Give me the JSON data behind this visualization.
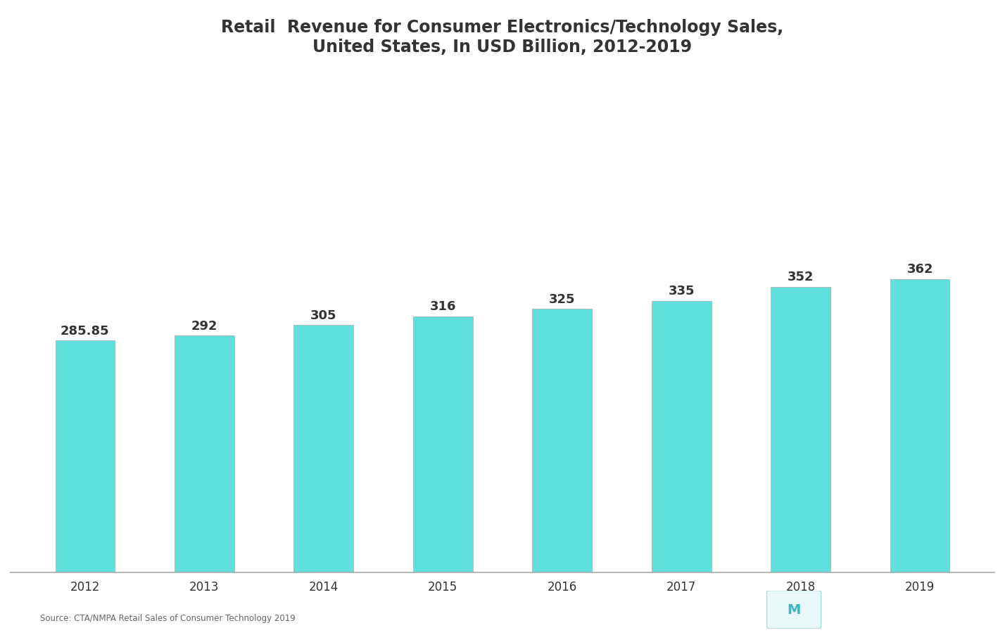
{
  "title_line1": "Retail  Revenue for Consumer Electronics/Technology Sales,",
  "title_line2": "United States, In USD Billion, 2012-2019",
  "years": [
    "2012",
    "2013",
    "2014",
    "2015",
    "2016",
    "2017",
    "2018",
    "2019"
  ],
  "values": [
    285.85,
    292,
    305,
    316,
    325,
    335,
    352,
    362
  ],
  "bar_color": "#5FE0DC",
  "bar_edge_color": "#aaaaaa",
  "labels": [
    "285.85",
    "292",
    "305",
    "316",
    "325",
    "335",
    "352",
    "362"
  ],
  "background_color": "#ffffff",
  "text_color": "#333333",
  "label_color": "#333333",
  "source_text": "Source: CTA/NMPA Retail Sales of Consumer Technology 2019",
  "title_fontsize": 17,
  "label_fontsize": 13,
  "tick_fontsize": 12,
  "ylim": [
    0,
    600
  ]
}
